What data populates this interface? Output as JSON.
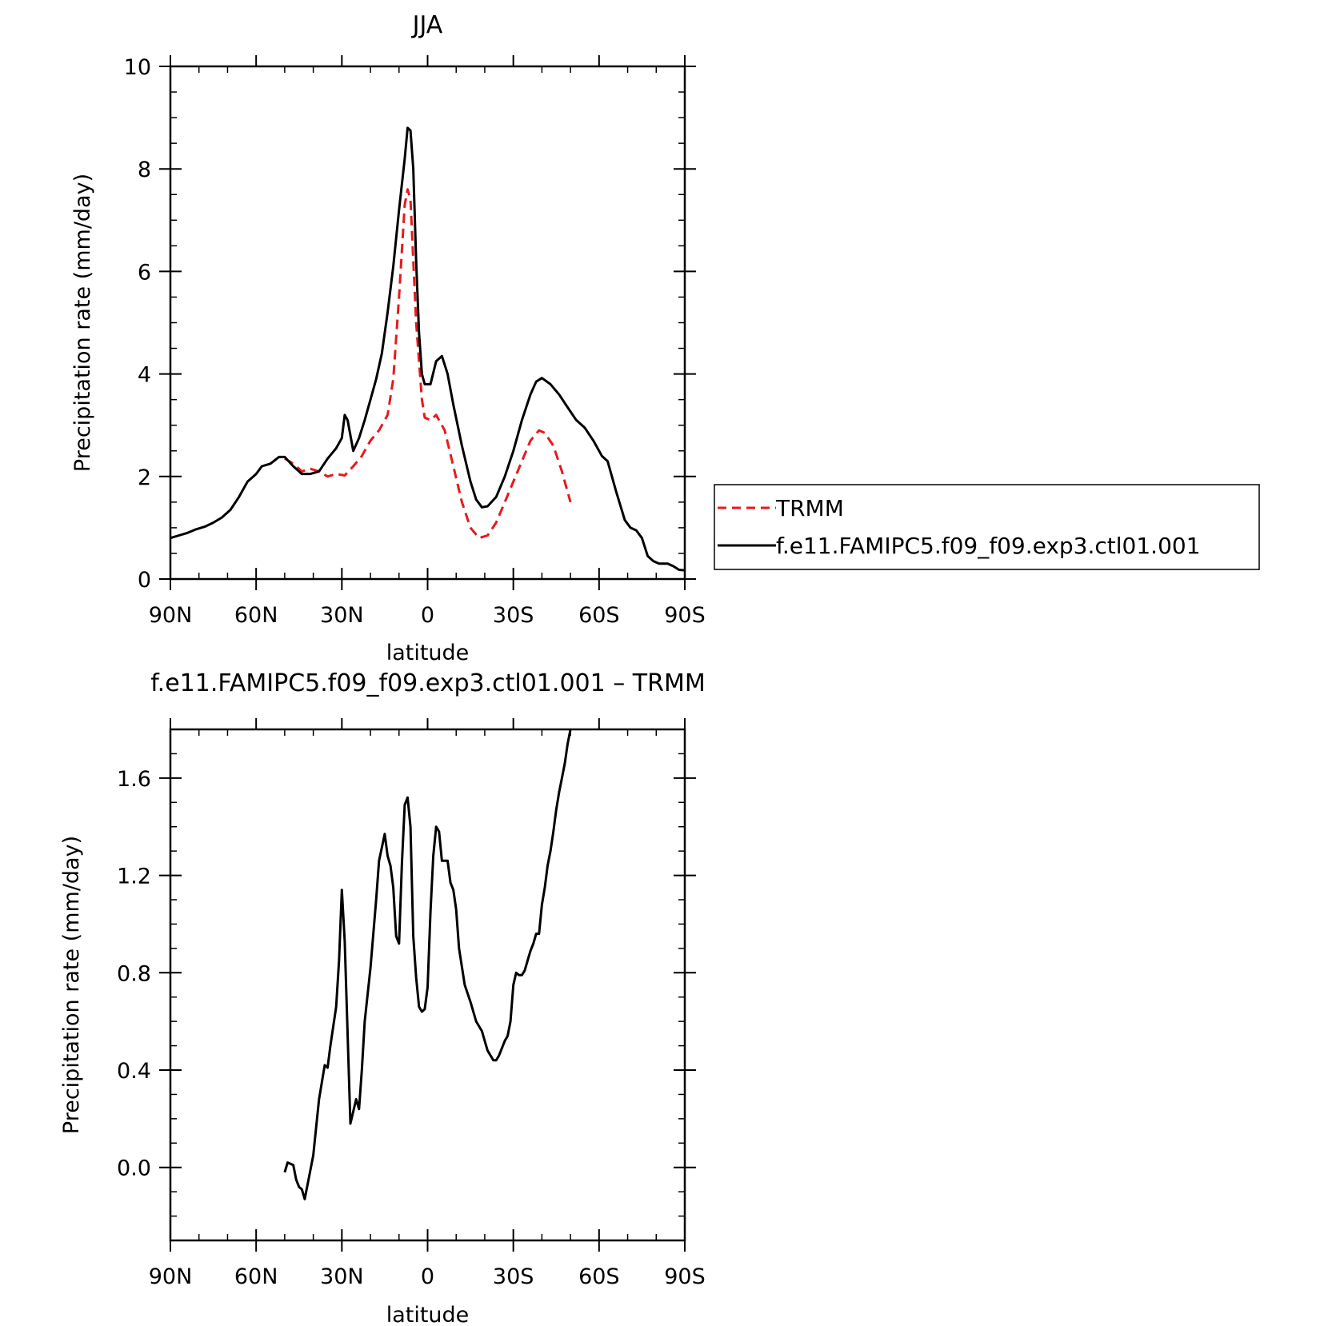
{
  "chart_data": [
    {
      "type": "line",
      "title": "JJA",
      "xlabel": "latitude",
      "ylabel": "Precipitation rate (mm/day)",
      "xlim": [
        90,
        -90
      ],
      "ylim": [
        0,
        10
      ],
      "x_ticks": [
        {
          "value": 90,
          "label": "90N"
        },
        {
          "value": 60,
          "label": "60N"
        },
        {
          "value": 30,
          "label": "30N"
        },
        {
          "value": 0,
          "label": "0"
        },
        {
          "value": -30,
          "label": "30S"
        },
        {
          "value": -60,
          "label": "60S"
        },
        {
          "value": -90,
          "label": "90S"
        }
      ],
      "y_ticks": [
        {
          "value": 0,
          "label": "0"
        },
        {
          "value": 2,
          "label": "2"
        },
        {
          "value": 4,
          "label": "4"
        },
        {
          "value": 6,
          "label": "6"
        },
        {
          "value": 8,
          "label": "8"
        },
        {
          "value": 10,
          "label": "10"
        }
      ],
      "legend": {
        "placement": "right",
        "entries": [
          "TRMM",
          "f.e11.FAMIPC5.f09_f09.exp3.ctl01.001"
        ]
      },
      "series": [
        {
          "name": "TRMM",
          "color": "#e8191c",
          "dash": "dashed",
          "points": [
            [
              50,
              2.35
            ],
            [
              47,
              2.25
            ],
            [
              44,
              2.1
            ],
            [
              41,
              2.15
            ],
            [
              38,
              2.1
            ],
            [
              35,
              2.0
            ],
            [
              32,
              2.05
            ],
            [
              29,
              2.02
            ],
            [
              26,
              2.2
            ],
            [
              23,
              2.4
            ],
            [
              20,
              2.7
            ],
            [
              17,
              2.9
            ],
            [
              14,
              3.2
            ],
            [
              12,
              3.9
            ],
            [
              10,
              5.5
            ],
            [
              8,
              7.3
            ],
            [
              7,
              7.6
            ],
            [
              6,
              7.4
            ],
            [
              4,
              5.0
            ],
            [
              2,
              3.5
            ],
            [
              1,
              3.15
            ],
            [
              -1,
              3.1
            ],
            [
              -3,
              3.2
            ],
            [
              -6,
              2.9
            ],
            [
              -9,
              2.2
            ],
            [
              -12,
              1.5
            ],
            [
              -15,
              1.0
            ],
            [
              -18,
              0.8
            ],
            [
              -21,
              0.85
            ],
            [
              -24,
              1.1
            ],
            [
              -27,
              1.5
            ],
            [
              -30,
              1.9
            ],
            [
              -33,
              2.3
            ],
            [
              -36,
              2.7
            ],
            [
              -39,
              2.9
            ],
            [
              -41,
              2.85
            ],
            [
              -44,
              2.6
            ],
            [
              -47,
              2.1
            ],
            [
              -50,
              1.5
            ]
          ]
        },
        {
          "name": "f.e11.FAMIPC5.f09_f09.exp3.ctl01.001",
          "color": "#000000",
          "dash": "solid",
          "points": [
            [
              90,
              0.8
            ],
            [
              87,
              0.85
            ],
            [
              84,
              0.9
            ],
            [
              81,
              0.97
            ],
            [
              78,
              1.02
            ],
            [
              75,
              1.1
            ],
            [
              72,
              1.2
            ],
            [
              69,
              1.35
            ],
            [
              66,
              1.6
            ],
            [
              63,
              1.9
            ],
            [
              60,
              2.05
            ],
            [
              58,
              2.2
            ],
            [
              55,
              2.25
            ],
            [
              52,
              2.38
            ],
            [
              50,
              2.38
            ],
            [
              47,
              2.2
            ],
            [
              44,
              2.05
            ],
            [
              41,
              2.05
            ],
            [
              38,
              2.1
            ],
            [
              35,
              2.35
            ],
            [
              32,
              2.55
            ],
            [
              30,
              2.75
            ],
            [
              29,
              3.2
            ],
            [
              28,
              3.1
            ],
            [
              26,
              2.5
            ],
            [
              24,
              2.75
            ],
            [
              22,
              3.1
            ],
            [
              20,
              3.5
            ],
            [
              18,
              3.9
            ],
            [
              16,
              4.4
            ],
            [
              14,
              5.2
            ],
            [
              12,
              6.1
            ],
            [
              10,
              7.2
            ],
            [
              8,
              8.2
            ],
            [
              7,
              8.8
            ],
            [
              6,
              8.75
            ],
            [
              5,
              8.0
            ],
            [
              4,
              6.2
            ],
            [
              3,
              4.8
            ],
            [
              2,
              4.0
            ],
            [
              1,
              3.8
            ],
            [
              -1,
              3.8
            ],
            [
              -3,
              4.25
            ],
            [
              -5,
              4.35
            ],
            [
              -7,
              4.0
            ],
            [
              -9,
              3.4
            ],
            [
              -12,
              2.6
            ],
            [
              -15,
              1.9
            ],
            [
              -17,
              1.55
            ],
            [
              -19,
              1.4
            ],
            [
              -21,
              1.42
            ],
            [
              -24,
              1.6
            ],
            [
              -27,
              2.0
            ],
            [
              -30,
              2.5
            ],
            [
              -33,
              3.1
            ],
            [
              -36,
              3.6
            ],
            [
              -38,
              3.85
            ],
            [
              -40,
              3.92
            ],
            [
              -43,
              3.8
            ],
            [
              -46,
              3.6
            ],
            [
              -49,
              3.35
            ],
            [
              -52,
              3.1
            ],
            [
              -55,
              2.95
            ],
            [
              -58,
              2.7
            ],
            [
              -61,
              2.4
            ],
            [
              -63,
              2.3
            ],
            [
              -66,
              1.7
            ],
            [
              -69,
              1.15
            ],
            [
              -71,
              1.0
            ],
            [
              -73,
              0.95
            ],
            [
              -75,
              0.8
            ],
            [
              -77,
              0.45
            ],
            [
              -79,
              0.35
            ],
            [
              -81,
              0.3
            ],
            [
              -84,
              0.3
            ],
            [
              -86,
              0.25
            ],
            [
              -88,
              0.18
            ],
            [
              -90,
              0.17
            ]
          ]
        }
      ]
    },
    {
      "type": "line",
      "title": "f.e11.FAMIPC5.f09_f09.exp3.ctl01.001 – TRMM",
      "xlabel": "latitude",
      "ylabel": "Precipitation rate (mm/day)",
      "xlim": [
        90,
        -90
      ],
      "ylim": [
        -0.3,
        1.8
      ],
      "x_ticks": [
        {
          "value": 90,
          "label": "90N"
        },
        {
          "value": 60,
          "label": "60N"
        },
        {
          "value": 30,
          "label": "30N"
        },
        {
          "value": 0,
          "label": "0"
        },
        {
          "value": -30,
          "label": "30S"
        },
        {
          "value": -60,
          "label": "60S"
        },
        {
          "value": -90,
          "label": "90S"
        }
      ],
      "y_ticks": [
        {
          "value": 0.0,
          "label": "0.0"
        },
        {
          "value": 0.4,
          "label": "0.4"
        },
        {
          "value": 0.8,
          "label": "0.8"
        },
        {
          "value": 1.2,
          "label": "1.2"
        },
        {
          "value": 1.6,
          "label": "1.6"
        }
      ],
      "series": [
        {
          "color": "#000000",
          "dash": "solid",
          "points": [
            [
              50,
              -0.02
            ],
            [
              49,
              0.02
            ],
            [
              47,
              0.01
            ],
            [
              46,
              -0.05
            ],
            [
              45,
              -0.08
            ],
            [
              44,
              -0.09
            ],
            [
              43,
              -0.13
            ],
            [
              42,
              -0.07
            ],
            [
              40,
              0.05
            ],
            [
              38,
              0.28
            ],
            [
              36,
              0.42
            ],
            [
              35,
              0.41
            ],
            [
              34,
              0.5
            ],
            [
              32,
              0.66
            ],
            [
              31,
              0.85
            ],
            [
              30,
              1.14
            ],
            [
              29,
              0.93
            ],
            [
              28,
              0.55
            ],
            [
              27,
              0.18
            ],
            [
              25,
              0.28
            ],
            [
              24,
              0.24
            ],
            [
              23,
              0.4
            ],
            [
              22,
              0.6
            ],
            [
              20,
              0.82
            ],
            [
              18,
              1.1
            ],
            [
              17,
              1.26
            ],
            [
              15,
              1.37
            ],
            [
              14,
              1.28
            ],
            [
              13,
              1.24
            ],
            [
              12,
              1.15
            ],
            [
              11,
              0.95
            ],
            [
              10,
              0.92
            ],
            [
              9,
              1.25
            ],
            [
              8,
              1.49
            ],
            [
              7,
              1.52
            ],
            [
              6,
              1.4
            ],
            [
              5,
              0.95
            ],
            [
              4,
              0.78
            ],
            [
              3,
              0.66
            ],
            [
              2,
              0.64
            ],
            [
              1,
              0.65
            ],
            [
              0,
              0.74
            ],
            [
              -1,
              1.05
            ],
            [
              -2,
              1.28
            ],
            [
              -3,
              1.4
            ],
            [
              -4,
              1.38
            ],
            [
              -5,
              1.26
            ],
            [
              -7,
              1.26
            ],
            [
              -8,
              1.17
            ],
            [
              -9,
              1.14
            ],
            [
              -10,
              1.06
            ],
            [
              -11,
              0.9
            ],
            [
              -13,
              0.75
            ],
            [
              -15,
              0.68
            ],
            [
              -17,
              0.6
            ],
            [
              -19,
              0.56
            ],
            [
              -20,
              0.52
            ],
            [
              -21,
              0.48
            ],
            [
              -22,
              0.46
            ],
            [
              -23,
              0.44
            ],
            [
              -24,
              0.44
            ],
            [
              -25,
              0.46
            ],
            [
              -27,
              0.52
            ],
            [
              -28,
              0.54
            ],
            [
              -29,
              0.6
            ],
            [
              -30,
              0.75
            ],
            [
              -31,
              0.8
            ],
            [
              -32,
              0.79
            ],
            [
              -33,
              0.79
            ],
            [
              -34,
              0.81
            ],
            [
              -35,
              0.85
            ],
            [
              -36,
              0.89
            ],
            [
              -37,
              0.92
            ],
            [
              -38,
              0.96
            ],
            [
              -39,
              0.96
            ],
            [
              -40,
              1.08
            ],
            [
              -41,
              1.15
            ],
            [
              -42,
              1.24
            ],
            [
              -43,
              1.3
            ],
            [
              -44,
              1.38
            ],
            [
              -45,
              1.47
            ],
            [
              -46,
              1.54
            ],
            [
              -47,
              1.6
            ],
            [
              -48,
              1.66
            ],
            [
              -49,
              1.74
            ],
            [
              -50,
              1.8
            ]
          ]
        }
      ]
    }
  ]
}
